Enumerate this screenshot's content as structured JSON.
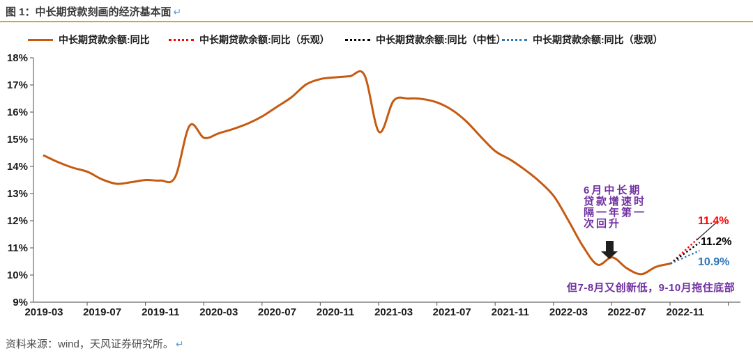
{
  "header": {
    "title": "图 1：中长期贷款刻画的经济基本面",
    "return_mark": "↵"
  },
  "legend": {
    "items": [
      {
        "label": "中长期贷款余额:同比",
        "style": "solid",
        "color": "#C55A11"
      },
      {
        "label": "中长期贷款余额:同比（乐观）",
        "style": "dotted",
        "color": "#FF0000"
      },
      {
        "label": "中长期贷款余额:同比（中性）",
        "style": "dotted",
        "color": "#000000"
      },
      {
        "label": "中长期贷款余额:同比（悲观）",
        "style": "dotted",
        "color": "#2E75B6"
      }
    ]
  },
  "chart_data": {
    "type": "line",
    "title": "图 1：中长期贷款刻画的经济基本面",
    "ylabel": "",
    "xlabel": "",
    "ylim": [
      9,
      18
    ],
    "grid": false,
    "legend_position": "top",
    "y_tick_labels": [
      "18%",
      "17%",
      "16%",
      "15%",
      "14%",
      "13%",
      "12%",
      "11%",
      "10%",
      "9%"
    ],
    "x_tick_labels": [
      "2019-03",
      "2019-07",
      "2019-11",
      "2020-03",
      "2020-07",
      "2020-11",
      "2021-03",
      "2021-07",
      "2021-11",
      "2022-03",
      "2022-07",
      "2022-11"
    ],
    "series": [
      {
        "name": "中长期贷款余额:同比",
        "color": "#C55A11",
        "style": "solid",
        "x": [
          "2019-03",
          "2019-04",
          "2019-05",
          "2019-06",
          "2019-07",
          "2019-08",
          "2019-09",
          "2019-10",
          "2019-11",
          "2019-12",
          "2020-01",
          "2020-02",
          "2020-03",
          "2020-04",
          "2020-05",
          "2020-06",
          "2020-07",
          "2020-08",
          "2020-09",
          "2020-10",
          "2020-11",
          "2020-12",
          "2021-01",
          "2021-02",
          "2021-03",
          "2021-04",
          "2021-05",
          "2021-06",
          "2021-07",
          "2021-08",
          "2021-09",
          "2021-10",
          "2021-11",
          "2021-12",
          "2022-01",
          "2022-02",
          "2022-03",
          "2022-04",
          "2022-05",
          "2022-06",
          "2022-07",
          "2022-08",
          "2022-09",
          "2022-10"
        ],
        "values": [
          14.4,
          14.15,
          13.95,
          13.8,
          13.52,
          13.36,
          13.42,
          13.5,
          13.48,
          13.6,
          15.5,
          15.05,
          15.22,
          15.38,
          15.58,
          15.85,
          16.2,
          16.55,
          17.02,
          17.22,
          17.28,
          17.32,
          17.36,
          15.27,
          16.42,
          16.5,
          16.48,
          16.35,
          16.08,
          15.65,
          15.08,
          14.55,
          14.25,
          13.88,
          13.45,
          12.9,
          12.0,
          11.05,
          10.38,
          10.65,
          10.25,
          10.03,
          10.3,
          10.42
        ]
      }
    ],
    "forecasts": [
      {
        "name": "中长期贷款余额:同比（乐观）",
        "color": "#FF0000",
        "style": "dotted",
        "start_x": "2022-10",
        "start_value": 10.42,
        "end_x": "2022-12",
        "end_value": 11.4,
        "label": "11.4%"
      },
      {
        "name": "中长期贷款余额:同比（中性）",
        "color": "#000000",
        "style": "dotted",
        "start_x": "2022-10",
        "start_value": 10.42,
        "end_x": "2022-12",
        "end_value": 11.2,
        "label": "11.2%"
      },
      {
        "name": "中长期贷款余额:同比（悲观）",
        "color": "#2E75B6",
        "style": "dotted",
        "start_x": "2022-10",
        "start_value": 10.42,
        "end_x": "2022-12",
        "end_value": 10.9,
        "label": "10.9%"
      }
    ]
  },
  "annotations": {
    "june_rebound": "6月中长期贷款增速时隔一年第一次回升",
    "jul_oct_low": "但7-8月又创新低，9-10月拖住底部",
    "arrow_color": "#1f1f1f"
  },
  "footer": {
    "source": "资料来源：wind，天风证券研究所。",
    "return_mark": "↵"
  }
}
